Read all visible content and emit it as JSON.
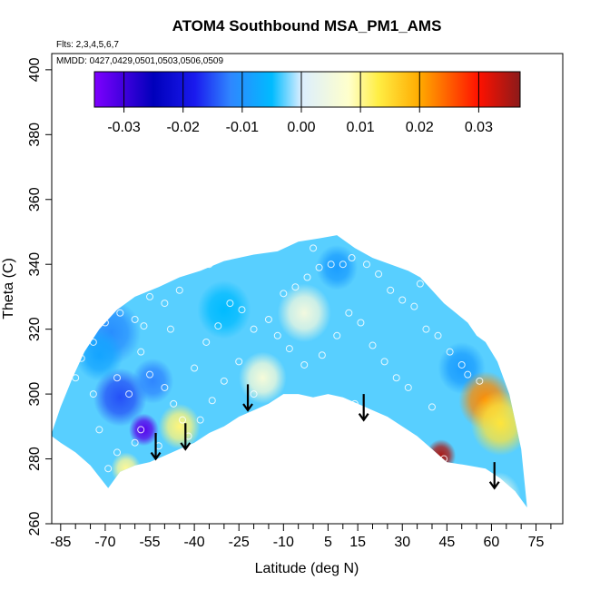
{
  "chart_data": {
    "type": "heatmap",
    "title": "ATOM4 Southbound MSA_PM1_AMS",
    "flights_label": "Flts: 2,3,4,5,6,7",
    "dates_label": "MMDD: 0427,0429,0501,0503,0506,0509",
    "xlabel": "Latitude (deg N)",
    "ylabel": "Theta (C)",
    "xlim": [
      -88,
      84
    ],
    "ylim": [
      260,
      405
    ],
    "x_ticks": [
      -85,
      -70,
      -55,
      -40,
      -25,
      -10,
      5,
      15,
      30,
      45,
      60,
      75
    ],
    "x_tick_labels": [
      "-85",
      "-70",
      "-55",
      "-40",
      "-25",
      "-10",
      "5",
      "15",
      "30",
      "45",
      "60",
      "75"
    ],
    "x_minor_step": 5,
    "y_ticks": [
      260,
      280,
      300,
      320,
      340,
      360,
      380,
      400
    ],
    "y_tick_labels": [
      "260",
      "280",
      "300",
      "320",
      "340",
      "360",
      "380",
      "400"
    ],
    "colorbar": {
      "range": [
        -0.035,
        0.037
      ],
      "ticks": [
        -0.03,
        -0.02,
        -0.01,
        0.0,
        0.01,
        0.02,
        0.03
      ],
      "tick_labels": [
        "-0.03",
        "-0.02",
        "-0.01",
        "0.00",
        "0.01",
        "0.02",
        "0.03"
      ],
      "divisions": [
        -0.03,
        -0.02,
        -0.01,
        0.0,
        0.01,
        0.02,
        0.03
      ],
      "stops": [
        {
          "v": -0.035,
          "color": "#7f00ff"
        },
        {
          "v": -0.025,
          "color": "#0000bb"
        },
        {
          "v": -0.018,
          "color": "#1a1aee"
        },
        {
          "v": -0.012,
          "color": "#2f86ff"
        },
        {
          "v": -0.005,
          "color": "#00bbff"
        },
        {
          "v": 0.0,
          "color": "#dbeeff"
        },
        {
          "v": 0.008,
          "color": "#ffffcc"
        },
        {
          "v": 0.013,
          "color": "#ffee44"
        },
        {
          "v": 0.02,
          "color": "#ffaa00"
        },
        {
          "v": 0.03,
          "color": "#ff1100"
        },
        {
          "v": 0.037,
          "color": "#8b1a1a"
        }
      ]
    },
    "data_boundary": {
      "top": [
        [
          -88,
          288
        ],
        [
          -85,
          296
        ],
        [
          -81,
          305
        ],
        [
          -77,
          313
        ],
        [
          -72,
          320
        ],
        [
          -66,
          326
        ],
        [
          -60,
          330
        ],
        [
          -52,
          333
        ],
        [
          -45,
          336
        ],
        [
          -38,
          338
        ],
        [
          -30,
          341
        ],
        [
          -20,
          343
        ],
        [
          -12,
          344
        ],
        [
          -5,
          347
        ],
        [
          2,
          348
        ],
        [
          8,
          349
        ],
        [
          14,
          345
        ],
        [
          20,
          342
        ],
        [
          26,
          340
        ],
        [
          32,
          338
        ],
        [
          36,
          336
        ],
        [
          40,
          332
        ],
        [
          44,
          328
        ],
        [
          48,
          325
        ],
        [
          52,
          322
        ],
        [
          55,
          318
        ],
        [
          58,
          316
        ],
        [
          62,
          310
        ],
        [
          66,
          300
        ],
        [
          70,
          283
        ],
        [
          72,
          265
        ]
      ],
      "bottom": [
        [
          72,
          265
        ],
        [
          68,
          270
        ],
        [
          63,
          274
        ],
        [
          58,
          277
        ],
        [
          52,
          278
        ],
        [
          45,
          279
        ],
        [
          40,
          283
        ],
        [
          35,
          287
        ],
        [
          30,
          290
        ],
        [
          25,
          293
        ],
        [
          20,
          295
        ],
        [
          15,
          297
        ],
        [
          10,
          299
        ],
        [
          5,
          300
        ],
        [
          0,
          299
        ],
        [
          -5,
          300
        ],
        [
          -10,
          300
        ],
        [
          -15,
          297
        ],
        [
          -20,
          295
        ],
        [
          -25,
          293
        ],
        [
          -30,
          290
        ],
        [
          -35,
          288
        ],
        [
          -40,
          285
        ],
        [
          -45,
          283
        ],
        [
          -50,
          281
        ],
        [
          -55,
          279
        ],
        [
          -60,
          278
        ],
        [
          -65,
          276
        ],
        [
          -69,
          271
        ],
        [
          -75,
          278
        ],
        [
          -80,
          282
        ],
        [
          -85,
          285
        ],
        [
          -88,
          287
        ]
      ]
    },
    "field_anomalies": [
      {
        "x": -57,
        "y": 289,
        "v": -0.032,
        "r": 5
      },
      {
        "x": -65,
        "y": 299,
        "v": -0.015,
        "r": 9
      },
      {
        "x": -54,
        "y": 304,
        "v": -0.012,
        "r": 7
      },
      {
        "x": -68,
        "y": 319,
        "v": -0.011,
        "r": 10
      },
      {
        "x": -72,
        "y": 312,
        "v": -0.008,
        "r": 8
      },
      {
        "x": 8,
        "y": 339,
        "v": -0.009,
        "r": 7
      },
      {
        "x": -30,
        "y": 326,
        "v": -0.005,
        "r": 9
      },
      {
        "x": 50,
        "y": 308,
        "v": -0.009,
        "r": 8
      },
      {
        "x": 58,
        "y": 298,
        "v": 0.022,
        "r": 9
      },
      {
        "x": 63,
        "y": 291,
        "v": 0.014,
        "r": 10
      },
      {
        "x": 43,
        "y": 281,
        "v": 0.035,
        "r": 5
      },
      {
        "x": -45,
        "y": 290,
        "v": 0.011,
        "r": 7
      },
      {
        "x": -63,
        "y": 277,
        "v": 0.01,
        "r": 5
      },
      {
        "x": -17,
        "y": 305,
        "v": 0.006,
        "r": 8
      },
      {
        "x": -3,
        "y": 325,
        "v": 0.005,
        "r": 9
      },
      {
        "x": 62,
        "y": 268,
        "v": 0.004,
        "r": 8
      }
    ],
    "sample_points": [
      [
        -80,
        305
      ],
      [
        -78,
        311
      ],
      [
        -74,
        316
      ],
      [
        -70,
        322
      ],
      [
        -65,
        325
      ],
      [
        -60,
        323
      ],
      [
        -57,
        321
      ],
      [
        -66,
        305
      ],
      [
        -62,
        300
      ],
      [
        -55,
        306
      ],
      [
        -50,
        302
      ],
      [
        -47,
        297
      ],
      [
        -44,
        292
      ],
      [
        -58,
        289
      ],
      [
        -60,
        285
      ],
      [
        -66,
        282
      ],
      [
        -69,
        277
      ],
      [
        -52,
        284
      ],
      [
        -40,
        308
      ],
      [
        -36,
        316
      ],
      [
        -32,
        321
      ],
      [
        -28,
        328
      ],
      [
        -24,
        326
      ],
      [
        -20,
        320
      ],
      [
        -15,
        323
      ],
      [
        -10,
        331
      ],
      [
        -6,
        333
      ],
      [
        -2,
        336
      ],
      [
        2,
        339
      ],
      [
        6,
        340
      ],
      [
        10,
        340
      ],
      [
        13,
        342
      ],
      [
        18,
        340
      ],
      [
        22,
        337
      ],
      [
        26,
        332
      ],
      [
        30,
        329
      ],
      [
        34,
        327
      ],
      [
        38,
        320
      ],
      [
        42,
        318
      ],
      [
        46,
        313
      ],
      [
        50,
        309
      ],
      [
        52,
        306
      ],
      [
        56,
        304
      ],
      [
        44,
        280
      ],
      [
        -12,
        318
      ],
      [
        -8,
        314
      ],
      [
        -3,
        309
      ],
      [
        3,
        312
      ],
      [
        8,
        318
      ],
      [
        12,
        325
      ],
      [
        16,
        322
      ],
      [
        20,
        315
      ],
      [
        24,
        310
      ],
      [
        28,
        305
      ],
      [
        32,
        302
      ],
      [
        -25,
        310
      ],
      [
        -30,
        304
      ],
      [
        -34,
        298
      ],
      [
        -38,
        292
      ],
      [
        -42,
        287
      ],
      [
        -20,
        300
      ],
      [
        14,
        297
      ],
      [
        40,
        296
      ],
      [
        -45,
        332
      ],
      [
        -50,
        328
      ],
      [
        -74,
        300
      ],
      [
        -72,
        289
      ],
      [
        -48,
        320
      ],
      [
        -58,
        313
      ],
      [
        0,
        345
      ],
      [
        -35,
        340
      ],
      [
        24,
        343
      ],
      [
        36,
        334
      ],
      [
        -55,
        330
      ]
    ],
    "arrows": [
      {
        "x": -53,
        "from": 288,
        "to": 280
      },
      {
        "x": -43,
        "from": 291,
        "to": 283
      },
      {
        "x": -22,
        "from": 303,
        "to": 295
      },
      {
        "x": 17,
        "from": 300,
        "to": 292
      },
      {
        "x": 61,
        "from": 279,
        "to": 271
      }
    ]
  }
}
